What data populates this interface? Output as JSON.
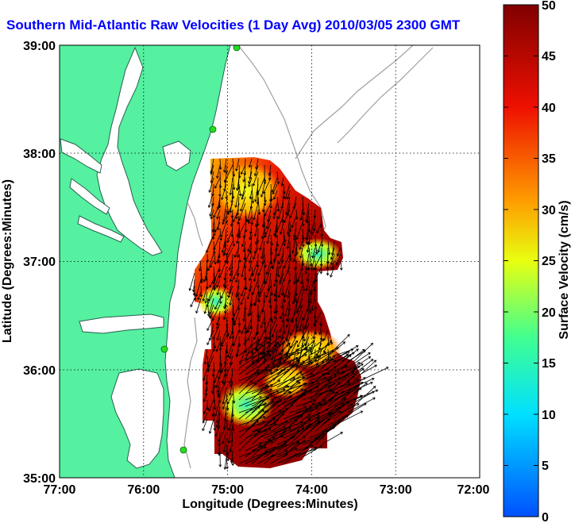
{
  "title": "Southern Mid-Atlantic Raw Velocities (1 Day Avg) 2010/03/05 2300 GMT",
  "xaxis": {
    "label": "Longitude (Degrees:Minutes)",
    "ticks": [
      "77:00",
      "76:00",
      "75:00",
      "74:00",
      "73:00",
      "72:00"
    ],
    "range": [
      -77,
      -72
    ]
  },
  "yaxis": {
    "label": "Latitude (Degrees:Minutes)",
    "ticks": [
      "39:00",
      "38:00",
      "37:00",
      "36:00",
      "35:00"
    ],
    "range": [
      35,
      39
    ]
  },
  "colorbar": {
    "label": "Surface Velocity (cm/s)",
    "ticks": [
      "50",
      "45",
      "40",
      "35",
      "30",
      "25",
      "20",
      "15",
      "10",
      "5",
      "0"
    ],
    "range": [
      0,
      50
    ]
  },
  "colors": {
    "land": "#55f0a0",
    "water": "#ffffff",
    "bathymetry": "#a0a0a0",
    "sites": "#22dd22",
    "title": "#0000ff"
  },
  "grid": "dotted"
}
